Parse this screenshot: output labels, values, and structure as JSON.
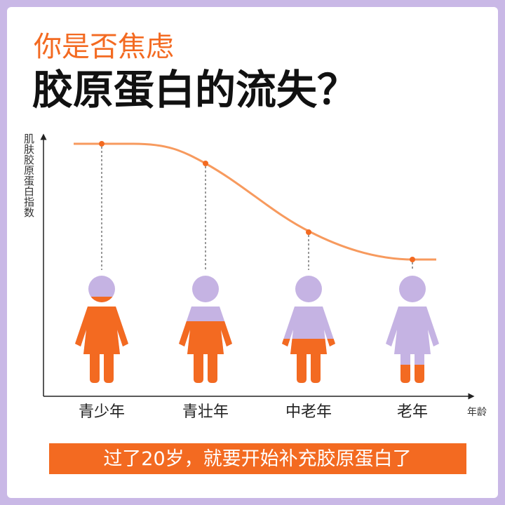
{
  "header": {
    "subtitle": "你是否焦虑",
    "title": "胶原蛋白的流失？"
  },
  "chart": {
    "y_label": "肌肤胶原蛋白指数",
    "x_label": "年龄",
    "stages": [
      "青少年",
      "青壮年",
      "中老年",
      "老年"
    ]
  },
  "banner": "过了20岁，就要开始补充胶原蛋白了"
}
